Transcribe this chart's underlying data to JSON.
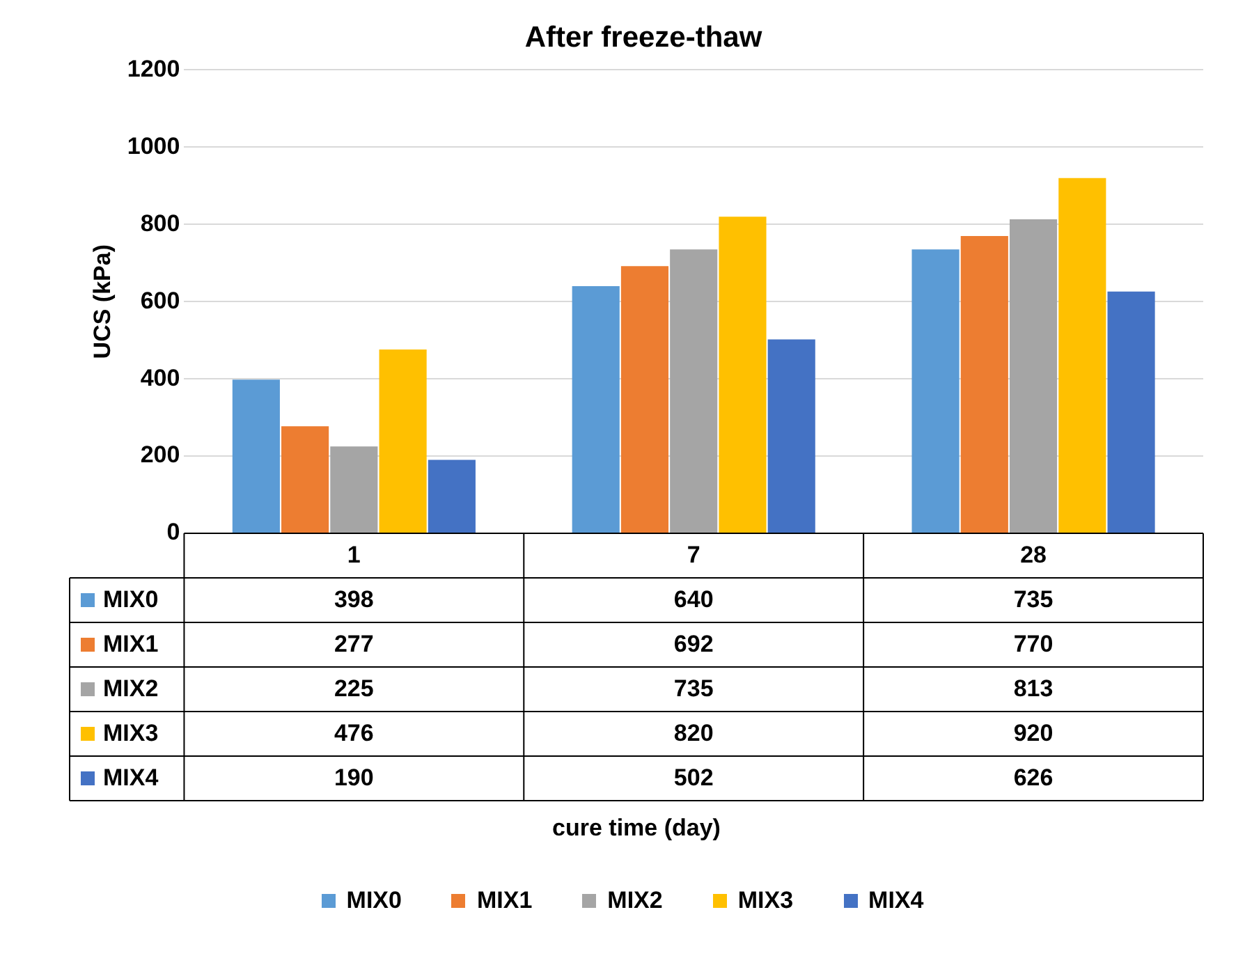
{
  "chart_data": {
    "type": "bar",
    "title": "After freeze-thaw",
    "annotations": [
      "cure time (day)"
    ],
    "ylabel": "UCS (kPa)",
    "categories": [
      "1",
      "7",
      "28"
    ],
    "series": [
      {
        "name": "MIX0",
        "color": "#5b9bd5",
        "values": [
          398,
          640,
          735
        ]
      },
      {
        "name": "MIX1",
        "color": "#ed7d31",
        "values": [
          277,
          692,
          770
        ]
      },
      {
        "name": "MIX2",
        "color": "#a5a5a5",
        "values": [
          225,
          735,
          813
        ]
      },
      {
        "name": "MIX3",
        "color": "#ffc000",
        "values": [
          476,
          820,
          920
        ]
      },
      {
        "name": "MIX4",
        "color": "#4472c4",
        "values": [
          190,
          502,
          626
        ]
      }
    ],
    "ylim": [
      0,
      1200
    ],
    "yticks": [
      0,
      200,
      400,
      600,
      800,
      1000,
      1200
    ],
    "grid": "y",
    "legend": "bottom",
    "data_labels": true
  }
}
